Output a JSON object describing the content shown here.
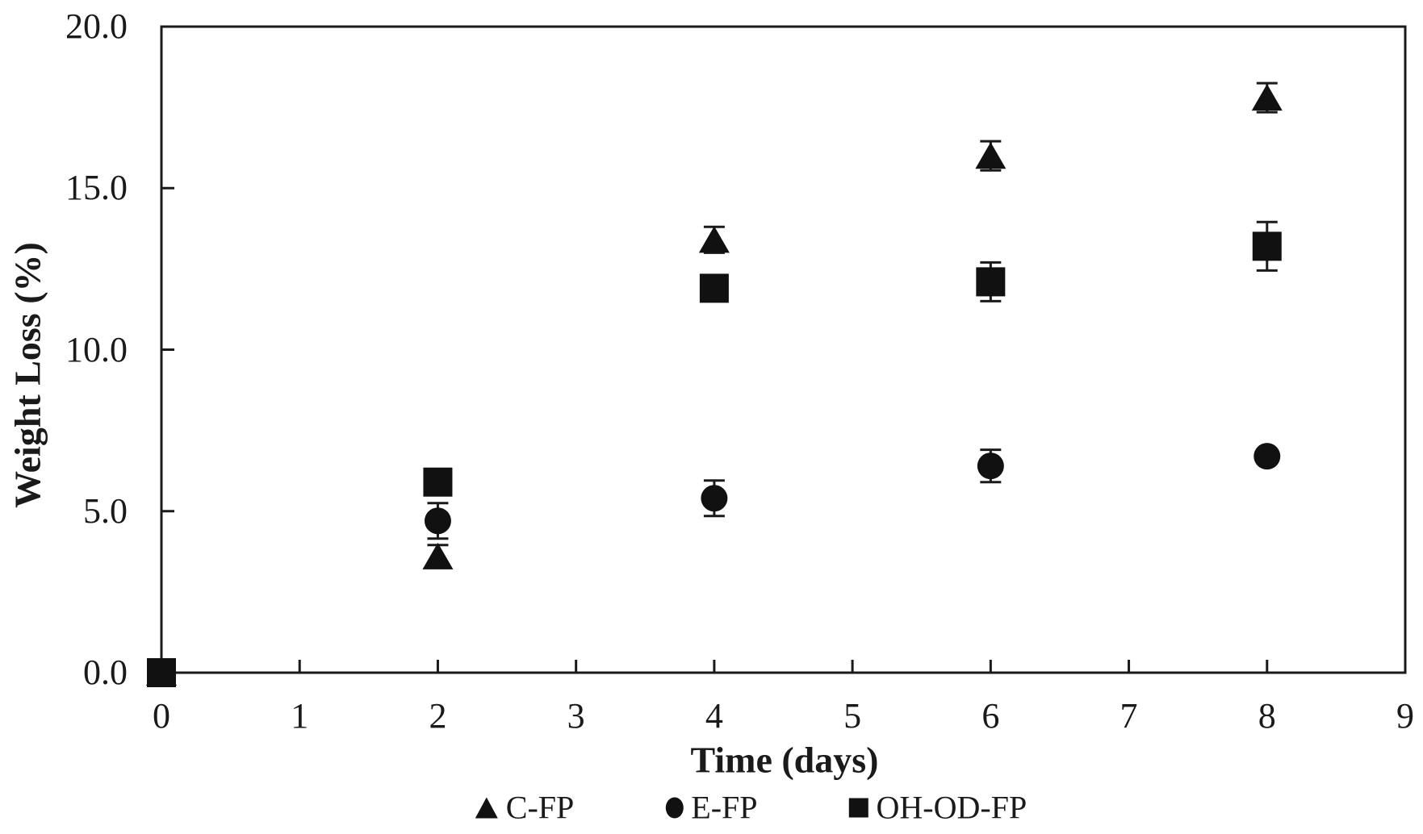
{
  "chart_data": {
    "type": "scatter",
    "title": "",
    "xlabel": "Time (days)",
    "ylabel": "Weight Loss (%)",
    "xlim": [
      0,
      9
    ],
    "ylim": [
      0,
      20
    ],
    "grid": false,
    "legend_position": "bottom",
    "x_tick_labels": [
      "0",
      "1",
      "2",
      "3",
      "4",
      "5",
      "6",
      "7",
      "8",
      "9"
    ],
    "x_tick_values": [
      0,
      1,
      2,
      3,
      4,
      5,
      6,
      7,
      8,
      9
    ],
    "y_tick_labels": [
      "0.0",
      "5.0",
      "10.0",
      "15.0",
      "20.0"
    ],
    "y_tick_values": [
      0,
      5,
      10,
      15,
      20
    ],
    "x": [
      0,
      2,
      4,
      6,
      8
    ],
    "series": [
      {
        "name": "C-FP",
        "marker": "triangle",
        "values": [
          0.0,
          3.6,
          13.4,
          16.0,
          17.8
        ],
        "errors": [
          0,
          0.35,
          0.4,
          0.45,
          0.45
        ]
      },
      {
        "name": "E-FP",
        "marker": "circle",
        "values": [
          0.0,
          4.7,
          5.4,
          6.4,
          6.7
        ],
        "errors": [
          0,
          0.55,
          0.55,
          0.5,
          0.2
        ]
      },
      {
        "name": "OH-OD-FP",
        "marker": "square",
        "values": [
          0.0,
          5.9,
          11.9,
          12.1,
          13.2
        ],
        "errors": [
          0,
          0.3,
          0.3,
          0.6,
          0.75
        ]
      }
    ],
    "marker_color": "#111111",
    "axis_color": "#1a1a1a",
    "background_color": "#ffffff"
  }
}
